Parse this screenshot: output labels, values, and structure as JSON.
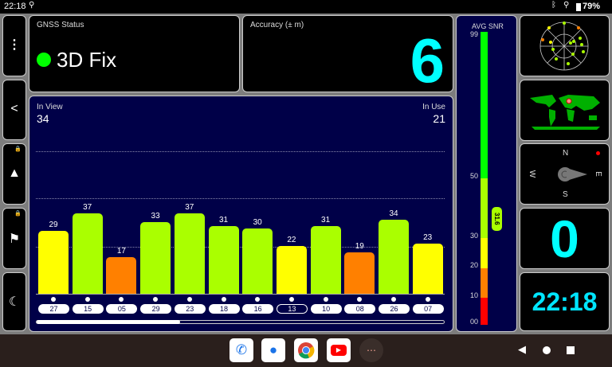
{
  "status_bar": {
    "time": "22:18",
    "battery": "79%",
    "icons": [
      "location-icon",
      "bluetooth-icon",
      "location-icon",
      "battery-icon"
    ]
  },
  "sidebar": {
    "items": [
      {
        "icon": "more-vert-icon"
      },
      {
        "icon": "share-icon"
      },
      {
        "icon": "navigation-arrow-icon",
        "locked": true
      },
      {
        "icon": "person-flag-icon",
        "locked": true
      },
      {
        "icon": "moon-icon"
      }
    ]
  },
  "gnss": {
    "title": "GNSS Status",
    "fix": "3D Fix",
    "fix_color": "#00ff00"
  },
  "accuracy": {
    "title": "Accuracy (± m)",
    "value": "6"
  },
  "satellites": {
    "in_view_label": "In View",
    "in_view": "34",
    "in_use_label": "In Use",
    "in_use": "21",
    "bars": [
      {
        "prn": "27",
        "snr": 29,
        "color": "#ffff00",
        "used": true
      },
      {
        "prn": "15",
        "snr": 37,
        "color": "#aaff00",
        "used": true
      },
      {
        "prn": "05",
        "snr": 17,
        "color": "#ff8000",
        "used": true
      },
      {
        "prn": "29",
        "snr": 33,
        "color": "#aaff00",
        "used": true
      },
      {
        "prn": "23",
        "snr": 37,
        "color": "#aaff00",
        "used": true
      },
      {
        "prn": "18",
        "snr": 31,
        "color": "#aaff00",
        "used": true
      },
      {
        "prn": "16",
        "snr": 30,
        "color": "#aaff00",
        "used": true
      },
      {
        "prn": "13",
        "snr": 22,
        "color": "#ffff00",
        "used": false
      },
      {
        "prn": "10",
        "snr": 31,
        "color": "#aaff00",
        "used": true
      },
      {
        "prn": "08",
        "snr": 19,
        "color": "#ff8000",
        "used": true
      },
      {
        "prn": "26",
        "snr": 34,
        "color": "#aaff00",
        "used": true
      },
      {
        "prn": "07",
        "snr": 23,
        "color": "#ffff00",
        "used": true
      }
    ],
    "scroll_fraction": 0.35
  },
  "snr": {
    "title": "AVG SNR",
    "ticks": [
      "99",
      "50",
      "30",
      "20",
      "10",
      "00"
    ],
    "value": "31.6"
  },
  "compass": {
    "n": "N",
    "s": "S",
    "e": "E",
    "w": "W"
  },
  "speed": {
    "value": "0"
  },
  "clock": {
    "value": "22:18"
  },
  "taskbar": {
    "apps": [
      "phone-app-icon",
      "messages-app-icon",
      "chrome-app-icon",
      "youtube-app-icon",
      "app-drawer-icon"
    ]
  }
}
